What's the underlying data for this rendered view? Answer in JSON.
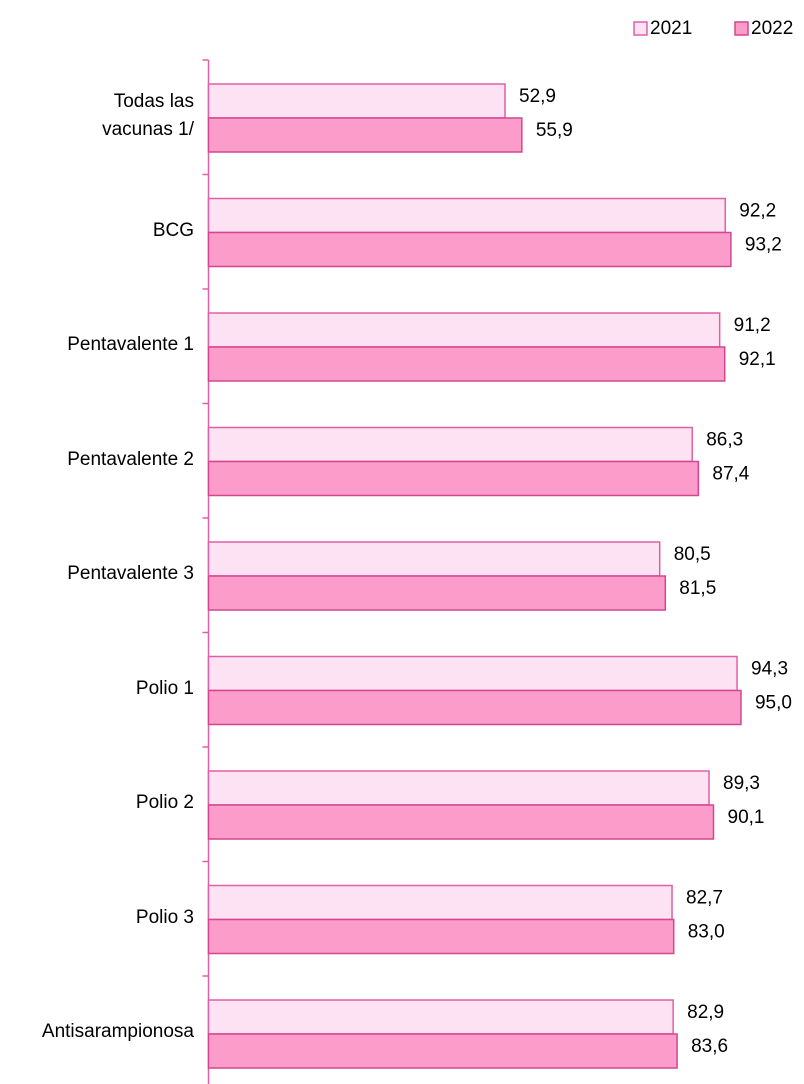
{
  "chart_data": {
    "type": "bar",
    "orientation": "horizontal",
    "categories": [
      "Todas las\nvacunas 1/",
      "BCG",
      "Pentavalente 1",
      "Pentavalente 2",
      "Pentavalente 3",
      "Polio 1",
      "Polio 2",
      "Polio 3",
      "Antisarampionosa"
    ],
    "series": [
      {
        "name": "2021",
        "color": "#fde2f3",
        "values": [
          52.9,
          92.2,
          91.2,
          86.3,
          80.5,
          94.3,
          89.3,
          82.7,
          82.9
        ],
        "value_labels": [
          "52,9",
          "92,2",
          "91,2",
          "86,3",
          "80,5",
          "94,3",
          "89,3",
          "82,7",
          "82,9"
        ]
      },
      {
        "name": "2022",
        "color": "#fb9ccb",
        "values": [
          55.9,
          93.2,
          92.1,
          87.4,
          81.5,
          95.0,
          90.1,
          83.0,
          83.6
        ],
        "value_labels": [
          "55,9",
          "93,2",
          "92,1",
          "87,4",
          "81,5",
          "95,0",
          "90,1",
          "83,0",
          "83,6"
        ]
      }
    ],
    "xlim": [
      0,
      100
    ],
    "legend": "top-right"
  }
}
